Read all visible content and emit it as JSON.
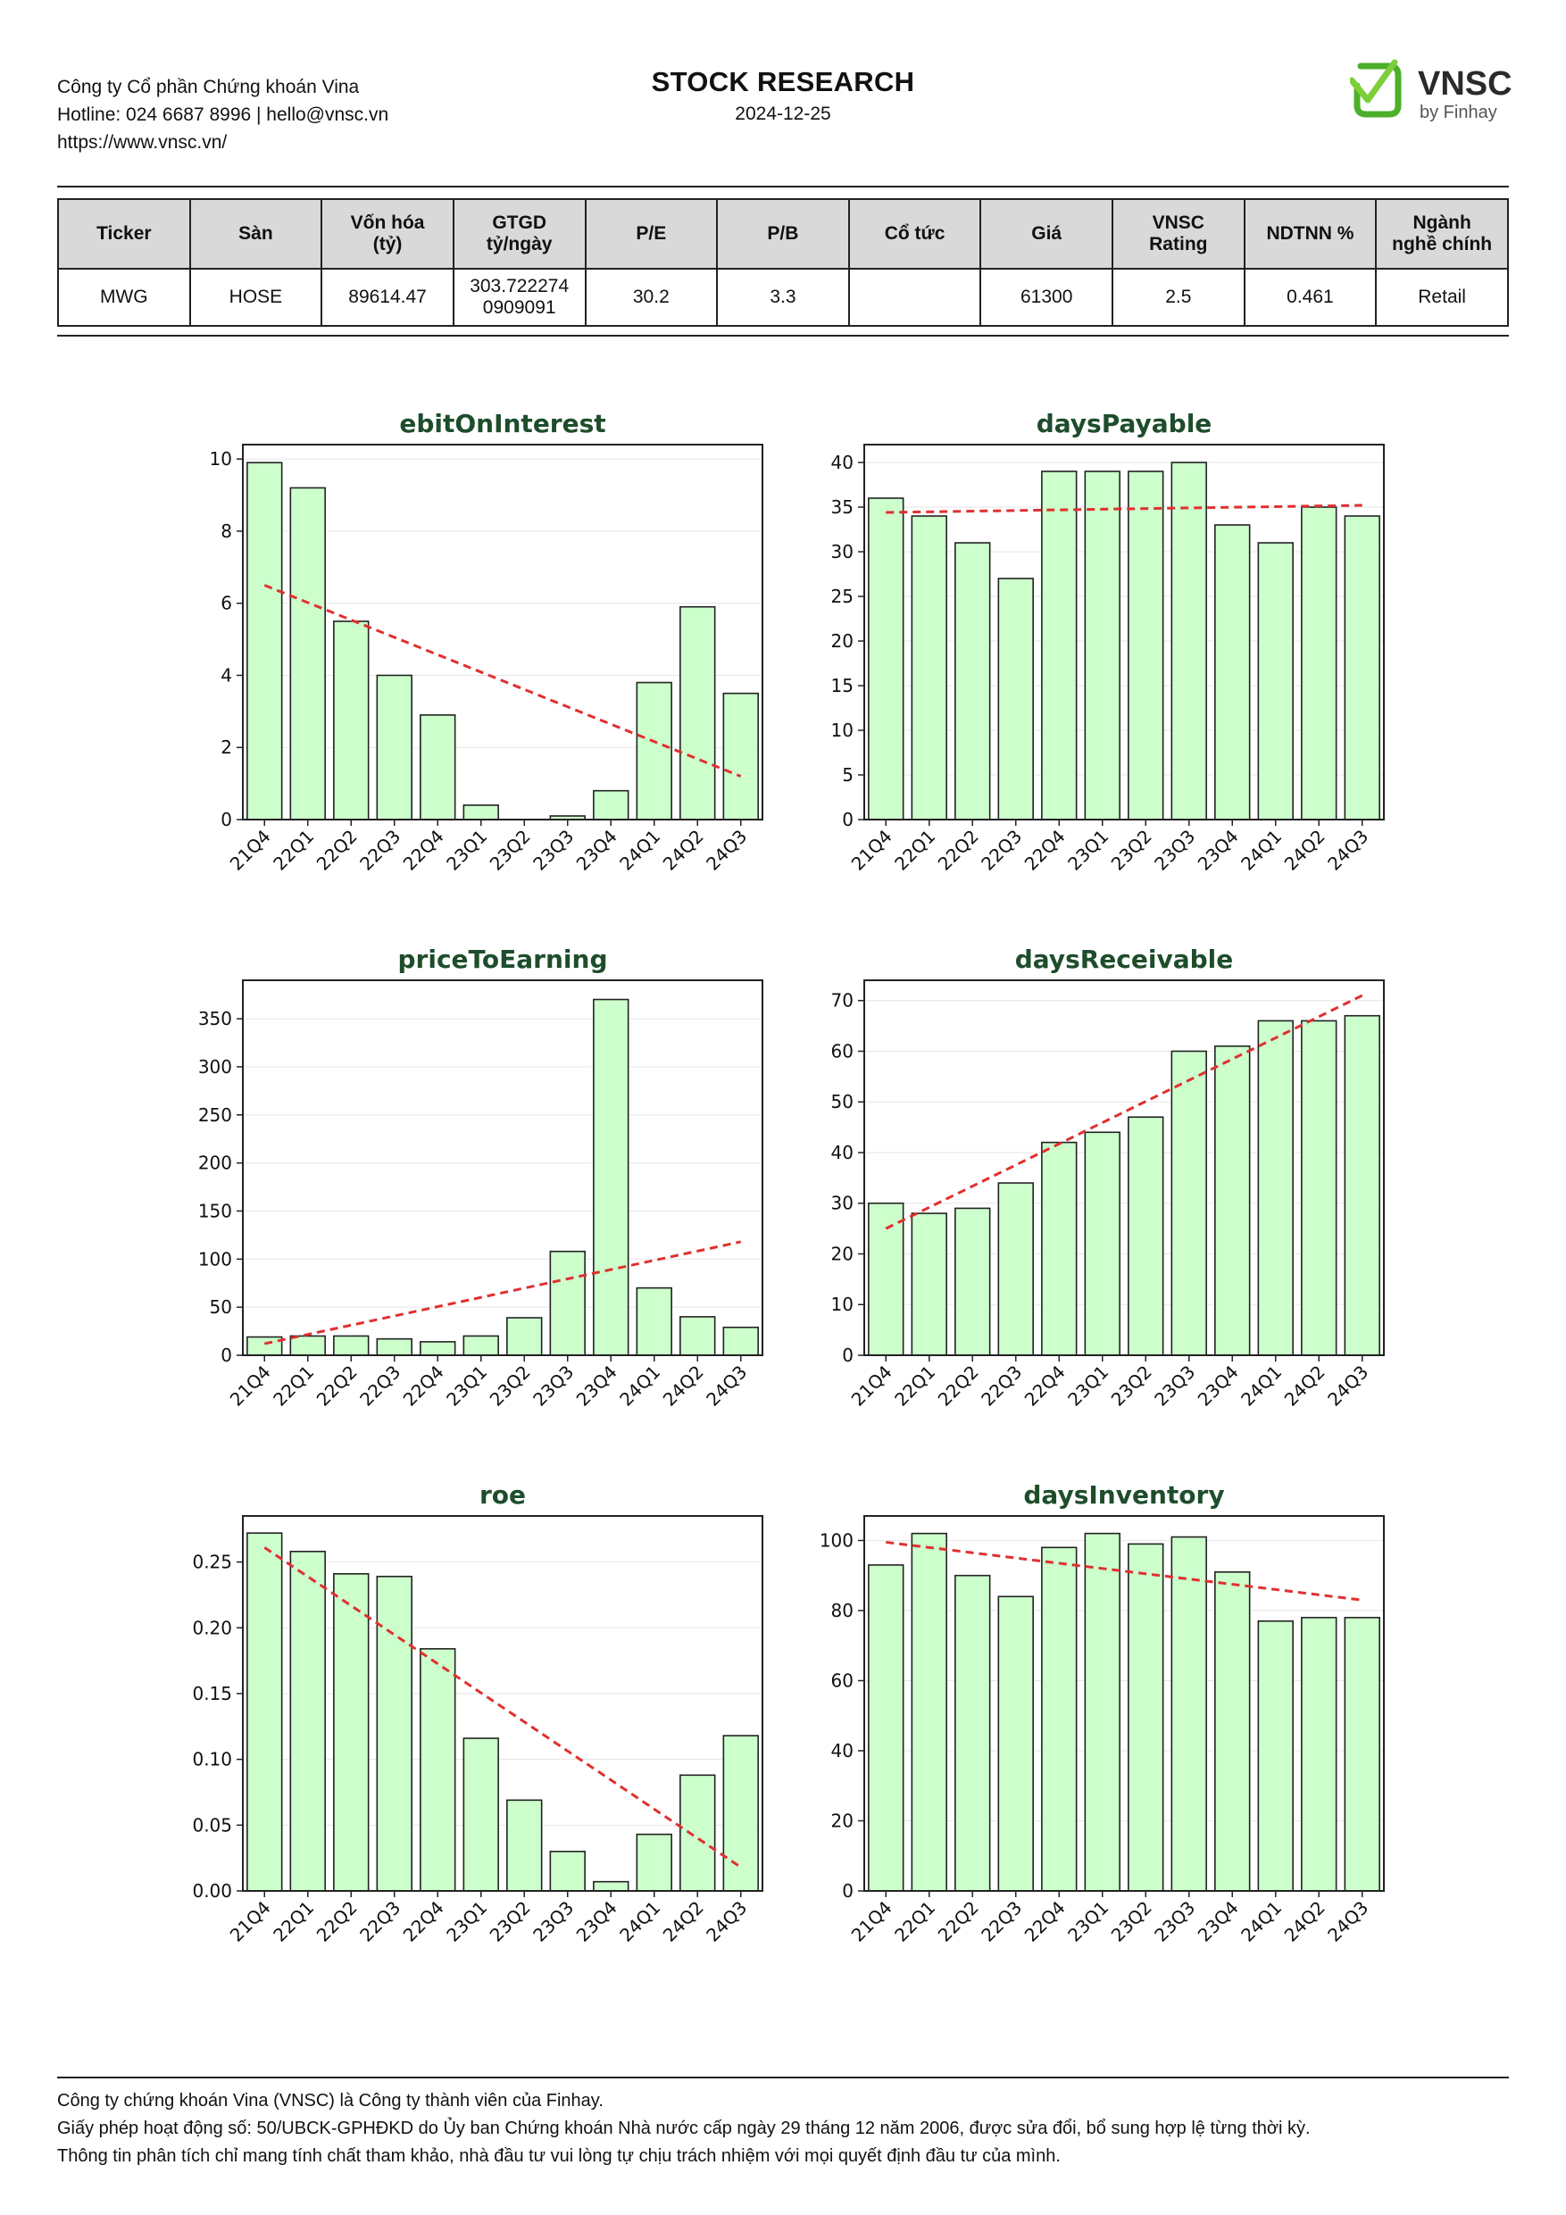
{
  "header": {
    "company_lines": [
      "Công ty Cổ phần Chứng khoán Vina",
      "Hotline: 024 6687 8996 | hello@vnsc.vn",
      "https://www.vnsc.vn/"
    ],
    "title": "STOCK RESEARCH",
    "date": "2024-12-25",
    "logo_text": "VNSC",
    "logo_subtext": "by Finhay",
    "brand_color": "#4caf2a"
  },
  "summary": {
    "headers": [
      "Ticker",
      "Sàn",
      "Vốn hóa\n(tỷ)",
      "GTGD\ntỷ/ngày",
      "P/E",
      "P/B",
      "Cổ tức",
      "Giá",
      "VNSC\nRating",
      "NDTNN %",
      "Ngành\nnghề chính"
    ],
    "row": [
      "MWG",
      "HOSE",
      "89614.47",
      "303.722274\n0909091",
      "30.2",
      "3.3",
      "",
      "61300",
      "2.5",
      "0.461",
      "Retail"
    ]
  },
  "chart_data": [
    {
      "type": "bar",
      "title": "ebitOnInterest",
      "categories": [
        "21Q4",
        "22Q1",
        "22Q2",
        "22Q3",
        "22Q4",
        "23Q1",
        "23Q2",
        "23Q3",
        "23Q4",
        "24Q1",
        "24Q2",
        "24Q3"
      ],
      "values": [
        9.9,
        9.2,
        5.5,
        4.0,
        2.9,
        0.4,
        0.0,
        0.1,
        0.8,
        3.8,
        5.9,
        3.5
      ],
      "ylim": [
        0,
        10.4
      ],
      "yticks": [
        0,
        2,
        4,
        6,
        8,
        10
      ],
      "tick_decimals": 0,
      "trend": [
        6.5,
        1.2
      ],
      "bar_color": "#ccffcc",
      "trend_color": "#e03030",
      "title_color": "#1e4d2b"
    },
    {
      "type": "bar",
      "title": "daysPayable",
      "categories": [
        "21Q4",
        "22Q1",
        "22Q2",
        "22Q3",
        "22Q4",
        "23Q1",
        "23Q2",
        "23Q3",
        "23Q4",
        "24Q1",
        "24Q2",
        "24Q3"
      ],
      "values": [
        36,
        34,
        31,
        27,
        39,
        39,
        39,
        40,
        33,
        31,
        35,
        34
      ],
      "ylim": [
        0,
        42
      ],
      "yticks": [
        0,
        5,
        10,
        15,
        20,
        25,
        30,
        35,
        40
      ],
      "tick_decimals": 0,
      "trend": [
        34.4,
        35.2
      ],
      "bar_color": "#ccffcc",
      "trend_color": "#e03030",
      "title_color": "#1e4d2b"
    },
    {
      "type": "bar",
      "title": "priceToEarning",
      "categories": [
        "21Q4",
        "22Q1",
        "22Q2",
        "22Q3",
        "22Q4",
        "23Q1",
        "23Q2",
        "23Q3",
        "23Q4",
        "24Q1",
        "24Q2",
        "24Q3"
      ],
      "values": [
        19,
        20,
        20,
        17,
        14,
        20,
        39,
        108,
        370,
        70,
        40,
        29
      ],
      "ylim": [
        0,
        390
      ],
      "yticks": [
        0,
        50,
        100,
        150,
        200,
        250,
        300,
        350
      ],
      "tick_decimals": 0,
      "trend": [
        12,
        118
      ],
      "bar_color": "#ccffcc",
      "trend_color": "#e03030",
      "title_color": "#1e4d2b"
    },
    {
      "type": "bar",
      "title": "daysReceivable",
      "categories": [
        "21Q4",
        "22Q1",
        "22Q2",
        "22Q3",
        "22Q4",
        "23Q1",
        "23Q2",
        "23Q3",
        "23Q4",
        "24Q1",
        "24Q2",
        "24Q3"
      ],
      "values": [
        30,
        28,
        29,
        34,
        42,
        44,
        47,
        60,
        61,
        66,
        66,
        67
      ],
      "ylim": [
        0,
        74
      ],
      "yticks": [
        0,
        10,
        20,
        30,
        40,
        50,
        60,
        70
      ],
      "tick_decimals": 0,
      "trend": [
        25,
        71
      ],
      "bar_color": "#ccffcc",
      "trend_color": "#e03030",
      "title_color": "#1e4d2b"
    },
    {
      "type": "bar",
      "title": "roe",
      "categories": [
        "21Q4",
        "22Q1",
        "22Q2",
        "22Q3",
        "22Q4",
        "23Q1",
        "23Q2",
        "23Q3",
        "23Q4",
        "24Q1",
        "24Q2",
        "24Q3"
      ],
      "values": [
        0.272,
        0.258,
        0.241,
        0.239,
        0.184,
        0.116,
        0.069,
        0.03,
        0.007,
        0.043,
        0.088,
        0.118
      ],
      "ylim": [
        0,
        0.285
      ],
      "yticks": [
        0,
        0.05,
        0.1,
        0.15,
        0.2,
        0.25
      ],
      "tick_decimals": 2,
      "trend": [
        0.261,
        0.018
      ],
      "bar_color": "#ccffcc",
      "trend_color": "#e03030",
      "title_color": "#1e4d2b"
    },
    {
      "type": "bar",
      "title": "daysInventory",
      "categories": [
        "21Q4",
        "22Q1",
        "22Q2",
        "22Q3",
        "22Q4",
        "23Q1",
        "23Q2",
        "23Q3",
        "23Q4",
        "24Q1",
        "24Q2",
        "24Q3"
      ],
      "values": [
        93,
        102,
        90,
        84,
        98,
        102,
        99,
        101,
        91,
        77,
        78,
        78
      ],
      "ylim": [
        0,
        107
      ],
      "yticks": [
        0,
        20,
        40,
        60,
        80,
        100
      ],
      "tick_decimals": 0,
      "trend": [
        99.5,
        83
      ],
      "bar_color": "#ccffcc",
      "trend_color": "#e03030",
      "title_color": "#1e4d2b"
    }
  ],
  "footer": {
    "lines": [
      "Công ty chứng khoán Vina (VNSC) là Công ty thành viên của Finhay.",
      "Giấy phép hoạt động số: 50/UBCK-GPHĐKD do Ủy ban Chứng khoán Nhà nước cấp ngày 29 tháng 12 năm 2006, được sửa đổi, bổ sung hợp lệ từng thời kỳ.",
      "Thông tin phân tích chỉ mang tính chất tham khảo, nhà đầu tư vui lòng tự chịu trách nhiệm với mọi quyết định đầu tư của mình."
    ]
  }
}
